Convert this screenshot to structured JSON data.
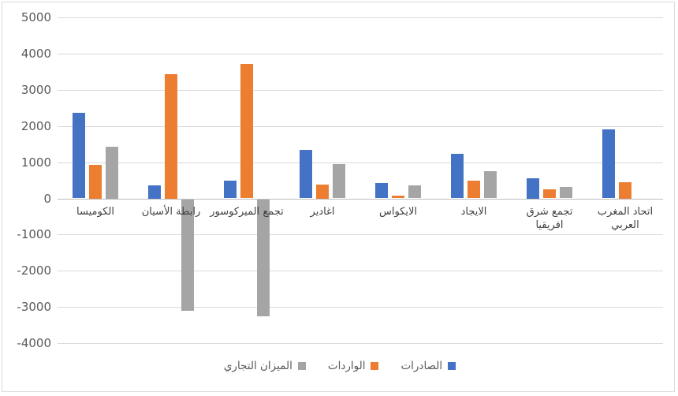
{
  "chart_data": {
    "type": "bar",
    "title": "",
    "direction": "rtl",
    "categories": [
      "الكوميسا",
      "رابطة الأسيان",
      "تجمع الميركوسور",
      "اغادير",
      "الايكواس",
      "الايجاد",
      "تجمع شرق افريقيا",
      "اتحاد المغرب العربي"
    ],
    "series": [
      {
        "name": "الصادرات",
        "color": "#4472C4",
        "values": [
          2360,
          360,
          490,
          1330,
          420,
          1230,
          560,
          1900
        ]
      },
      {
        "name": "الواردات",
        "color": "#ED7D31",
        "values": [
          930,
          3440,
          3710,
          390,
          70,
          480,
          250,
          450
        ]
      },
      {
        "name": "الميزان التجاري",
        "color": "#A5A5A5",
        "values": [
          1430,
          -3080,
          -3220,
          940,
          350,
          750,
          310,
          null
        ]
      }
    ],
    "y_ticks": [
      5000,
      4000,
      3000,
      2000,
      1000,
      0,
      -1000,
      -2000,
      -3000,
      -4000
    ],
    "ylim": [
      -4000,
      5000
    ],
    "grid": true,
    "legend_position": "bottom"
  },
  "legend": {
    "items": [
      {
        "label": "الميزان التجاري",
        "color": "#A5A5A5"
      },
      {
        "label": "الواردات",
        "color": "#ED7D31"
      },
      {
        "label": "الصادرات",
        "color": "#4472C4"
      }
    ]
  }
}
